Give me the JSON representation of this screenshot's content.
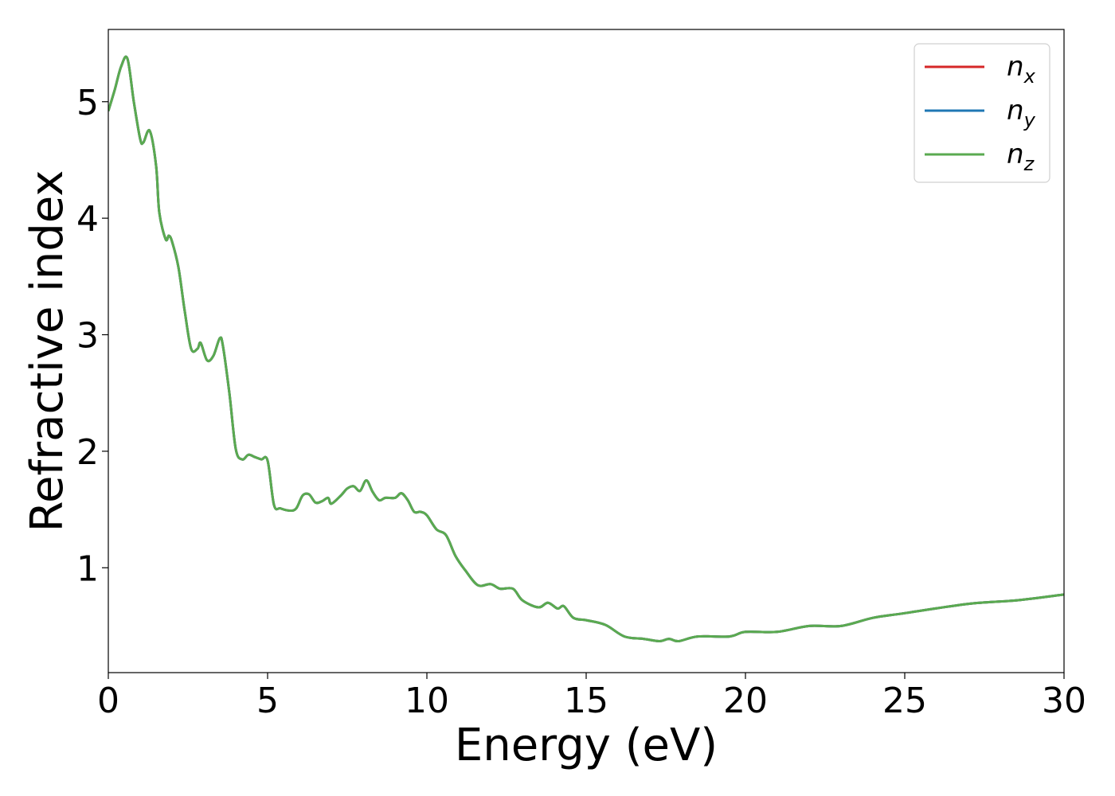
{
  "chart_data": {
    "type": "line",
    "title": "",
    "xlabel": "Energy (eV)",
    "ylabel": "Refractive index",
    "xlim": [
      0,
      30
    ],
    "ylim": [
      0.1,
      5.62
    ],
    "xticks": [
      0,
      5,
      10,
      15,
      20,
      25,
      30
    ],
    "yticks": [
      1,
      2,
      3,
      4,
      5
    ],
    "grid": false,
    "legend_position": "top-right",
    "series": [
      {
        "name": "n_x",
        "legend_main": "n",
        "legend_sub": "x",
        "color": "#d62728",
        "x": [
          0,
          0.2,
          0.4,
          0.6,
          0.8,
          1.0,
          1.1,
          1.3,
          1.5,
          1.6,
          1.8,
          1.9,
          2.0,
          2.2,
          2.4,
          2.6,
          2.8,
          2.9,
          3.1,
          3.3,
          3.5,
          3.6,
          3.8,
          4.0,
          4.2,
          4.4,
          4.6,
          4.8,
          5.0,
          5.2,
          5.4,
          5.7,
          5.9,
          6.1,
          6.3,
          6.5,
          6.7,
          6.9,
          7.0,
          7.3,
          7.5,
          7.7,
          7.9,
          8.1,
          8.3,
          8.5,
          8.7,
          9.0,
          9.2,
          9.4,
          9.6,
          9.8,
          10.0,
          10.3,
          10.6,
          10.9,
          11.2,
          11.6,
          12.0,
          12.3,
          12.7,
          13.0,
          13.5,
          13.8,
          14.1,
          14.3,
          14.6,
          15.0,
          15.6,
          16.2,
          16.8,
          17.3,
          17.6,
          17.9,
          18.5,
          19.5,
          20.0,
          21.0,
          22.0,
          23.0,
          24.0,
          25.0,
          27.0,
          28.5,
          30.0
        ],
        "y": [
          4.92,
          5.1,
          5.3,
          5.37,
          5.0,
          4.68,
          4.65,
          4.75,
          4.45,
          4.05,
          3.82,
          3.85,
          3.8,
          3.58,
          3.2,
          2.88,
          2.88,
          2.93,
          2.78,
          2.82,
          2.97,
          2.9,
          2.5,
          2.02,
          1.93,
          1.97,
          1.95,
          1.93,
          1.92,
          1.54,
          1.51,
          1.49,
          1.51,
          1.62,
          1.63,
          1.56,
          1.57,
          1.6,
          1.55,
          1.62,
          1.68,
          1.7,
          1.66,
          1.75,
          1.65,
          1.58,
          1.6,
          1.6,
          1.64,
          1.58,
          1.48,
          1.48,
          1.45,
          1.33,
          1.28,
          1.1,
          0.98,
          0.85,
          0.86,
          0.82,
          0.82,
          0.72,
          0.66,
          0.7,
          0.65,
          0.67,
          0.57,
          0.55,
          0.51,
          0.41,
          0.39,
          0.37,
          0.39,
          0.37,
          0.41,
          0.41,
          0.45,
          0.45,
          0.5,
          0.5,
          0.57,
          0.61,
          0.69,
          0.72,
          0.77
        ]
      },
      {
        "name": "n_y",
        "legend_main": "n",
        "legend_sub": "y",
        "color": "#1f77b4",
        "x": [
          0,
          0.2,
          0.4,
          0.6,
          0.8,
          1.0,
          1.1,
          1.3,
          1.5,
          1.6,
          1.8,
          1.9,
          2.0,
          2.2,
          2.4,
          2.6,
          2.8,
          2.9,
          3.1,
          3.3,
          3.5,
          3.6,
          3.8,
          4.0,
          4.2,
          4.4,
          4.6,
          4.8,
          5.0,
          5.2,
          5.4,
          5.7,
          5.9,
          6.1,
          6.3,
          6.5,
          6.7,
          6.9,
          7.0,
          7.3,
          7.5,
          7.7,
          7.9,
          8.1,
          8.3,
          8.5,
          8.7,
          9.0,
          9.2,
          9.4,
          9.6,
          9.8,
          10.0,
          10.3,
          10.6,
          10.9,
          11.2,
          11.6,
          12.0,
          12.3,
          12.7,
          13.0,
          13.5,
          13.8,
          14.1,
          14.3,
          14.6,
          15.0,
          15.6,
          16.2,
          16.8,
          17.3,
          17.6,
          17.9,
          18.5,
          19.5,
          20.0,
          21.0,
          22.0,
          23.0,
          24.0,
          25.0,
          27.0,
          28.5,
          30.0
        ],
        "y": [
          4.92,
          5.1,
          5.3,
          5.37,
          5.0,
          4.68,
          4.65,
          4.75,
          4.45,
          4.05,
          3.82,
          3.85,
          3.8,
          3.58,
          3.2,
          2.88,
          2.88,
          2.93,
          2.78,
          2.82,
          2.97,
          2.9,
          2.5,
          2.02,
          1.93,
          1.97,
          1.95,
          1.93,
          1.92,
          1.54,
          1.51,
          1.49,
          1.51,
          1.62,
          1.63,
          1.56,
          1.57,
          1.6,
          1.55,
          1.62,
          1.68,
          1.7,
          1.66,
          1.75,
          1.65,
          1.58,
          1.6,
          1.6,
          1.64,
          1.58,
          1.48,
          1.48,
          1.45,
          1.33,
          1.28,
          1.1,
          0.98,
          0.85,
          0.86,
          0.82,
          0.82,
          0.72,
          0.66,
          0.7,
          0.65,
          0.67,
          0.57,
          0.55,
          0.51,
          0.41,
          0.39,
          0.37,
          0.39,
          0.37,
          0.41,
          0.41,
          0.45,
          0.45,
          0.5,
          0.5,
          0.57,
          0.61,
          0.69,
          0.72,
          0.77
        ]
      },
      {
        "name": "n_z",
        "legend_main": "n",
        "legend_sub": "z",
        "color": "#5aaa50",
        "x": [
          0,
          0.2,
          0.4,
          0.6,
          0.8,
          1.0,
          1.1,
          1.3,
          1.5,
          1.6,
          1.8,
          1.9,
          2.0,
          2.2,
          2.4,
          2.6,
          2.8,
          2.9,
          3.1,
          3.3,
          3.5,
          3.6,
          3.8,
          4.0,
          4.2,
          4.4,
          4.6,
          4.8,
          5.0,
          5.2,
          5.4,
          5.7,
          5.9,
          6.1,
          6.3,
          6.5,
          6.7,
          6.9,
          7.0,
          7.3,
          7.5,
          7.7,
          7.9,
          8.1,
          8.3,
          8.5,
          8.7,
          9.0,
          9.2,
          9.4,
          9.6,
          9.8,
          10.0,
          10.3,
          10.6,
          10.9,
          11.2,
          11.6,
          12.0,
          12.3,
          12.7,
          13.0,
          13.5,
          13.8,
          14.1,
          14.3,
          14.6,
          15.0,
          15.6,
          16.2,
          16.8,
          17.3,
          17.6,
          17.9,
          18.5,
          19.5,
          20.0,
          21.0,
          22.0,
          23.0,
          24.0,
          25.0,
          27.0,
          28.5,
          30.0
        ],
        "y": [
          4.92,
          5.1,
          5.3,
          5.37,
          5.0,
          4.68,
          4.65,
          4.75,
          4.45,
          4.05,
          3.82,
          3.85,
          3.8,
          3.58,
          3.2,
          2.88,
          2.88,
          2.93,
          2.78,
          2.82,
          2.97,
          2.9,
          2.5,
          2.02,
          1.93,
          1.97,
          1.95,
          1.93,
          1.92,
          1.54,
          1.51,
          1.49,
          1.51,
          1.62,
          1.63,
          1.56,
          1.57,
          1.6,
          1.55,
          1.62,
          1.68,
          1.7,
          1.66,
          1.75,
          1.65,
          1.58,
          1.6,
          1.6,
          1.64,
          1.58,
          1.48,
          1.48,
          1.45,
          1.33,
          1.28,
          1.1,
          0.98,
          0.85,
          0.86,
          0.82,
          0.82,
          0.72,
          0.66,
          0.7,
          0.65,
          0.67,
          0.57,
          0.55,
          0.51,
          0.41,
          0.39,
          0.37,
          0.39,
          0.37,
          0.41,
          0.41,
          0.45,
          0.45,
          0.5,
          0.5,
          0.57,
          0.61,
          0.69,
          0.72,
          0.77
        ]
      }
    ]
  }
}
